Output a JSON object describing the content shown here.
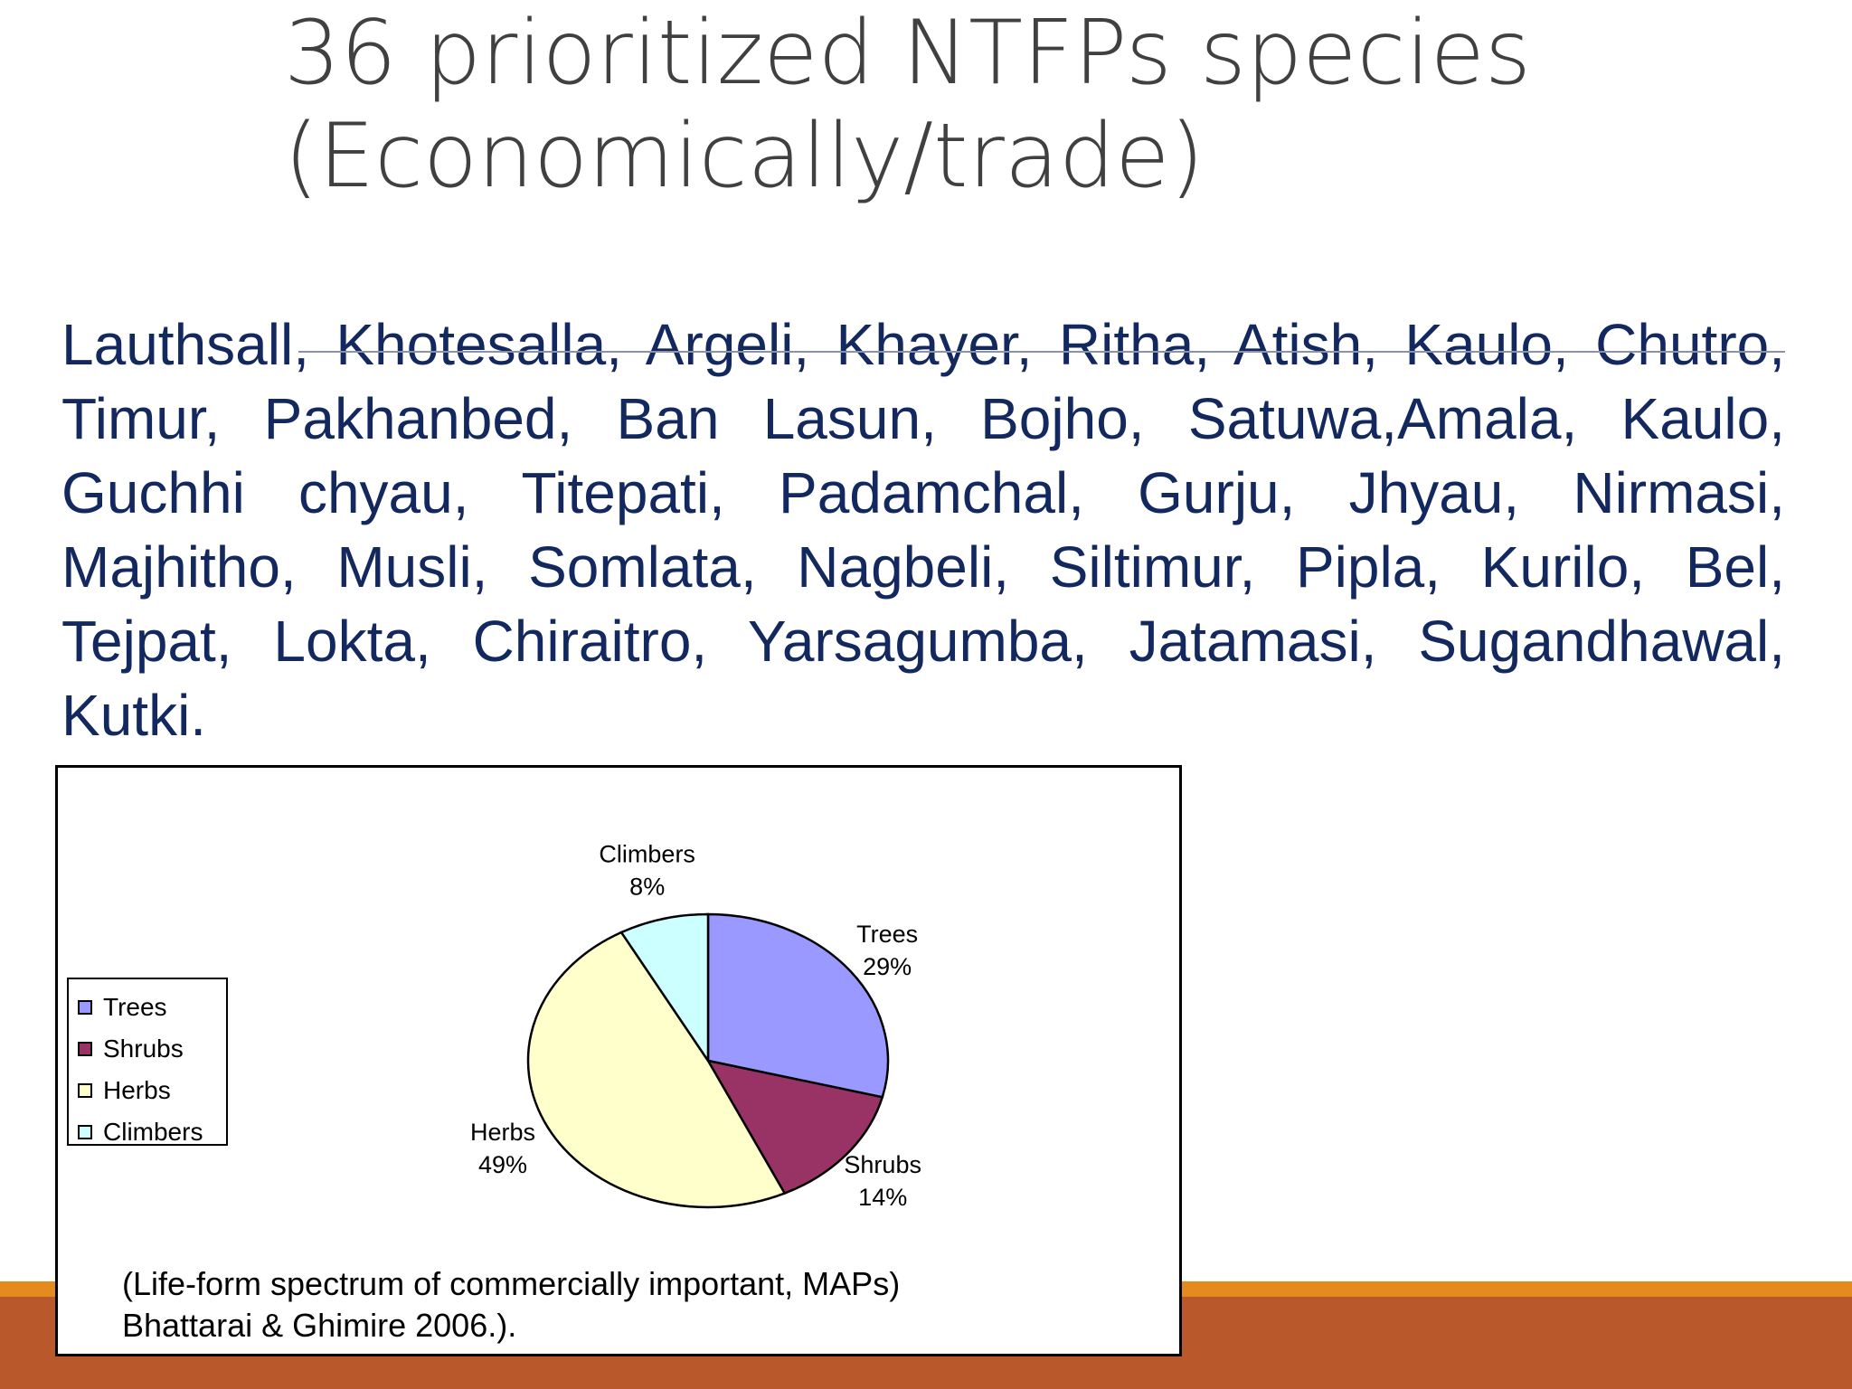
{
  "slide": {
    "title_line1": "36 prioritized NTFPs species",
    "title_line2": "(Economically/trade)",
    "species_text": "Lauthsall, Khotesalla, Argeli, Khayer, Ritha, Atish, Kaulo, Chutro, Timur, Pakhanbed, Ban Lasun, Bojho, Satuwa,Amala, Kaulo, Guchhi chyau, Titepati, Padamchal, Gurju, Jhyau, Nirmasi, Majhitho, Musli, Somlata, Nagbeli, Siltimur, Pipla, Kurilo, Bel, Tejpat, Lokta, Chiraitro, Yarsagumba, Jatamasi, Sugandhawal, Kutki.",
    "accent_orange": "#e48a1f",
    "accent_rust": "#b9592b"
  },
  "chart_data": {
    "type": "pie",
    "title": "",
    "categories": [
      "Trees",
      "Shrubs",
      "Herbs",
      "Climbers"
    ],
    "values": [
      29,
      14,
      49,
      8
    ],
    "labels": [
      "29%",
      "14%",
      "49%",
      "8%"
    ],
    "colors": [
      "#9999ff",
      "#993366",
      "#ffffcc",
      "#ccffff"
    ],
    "legend_position": "left",
    "source_line1": "(Life-form spectrum of commercially important, MAPs)",
    "source_line2": "Bhattarai & Ghimire 2006.)."
  }
}
